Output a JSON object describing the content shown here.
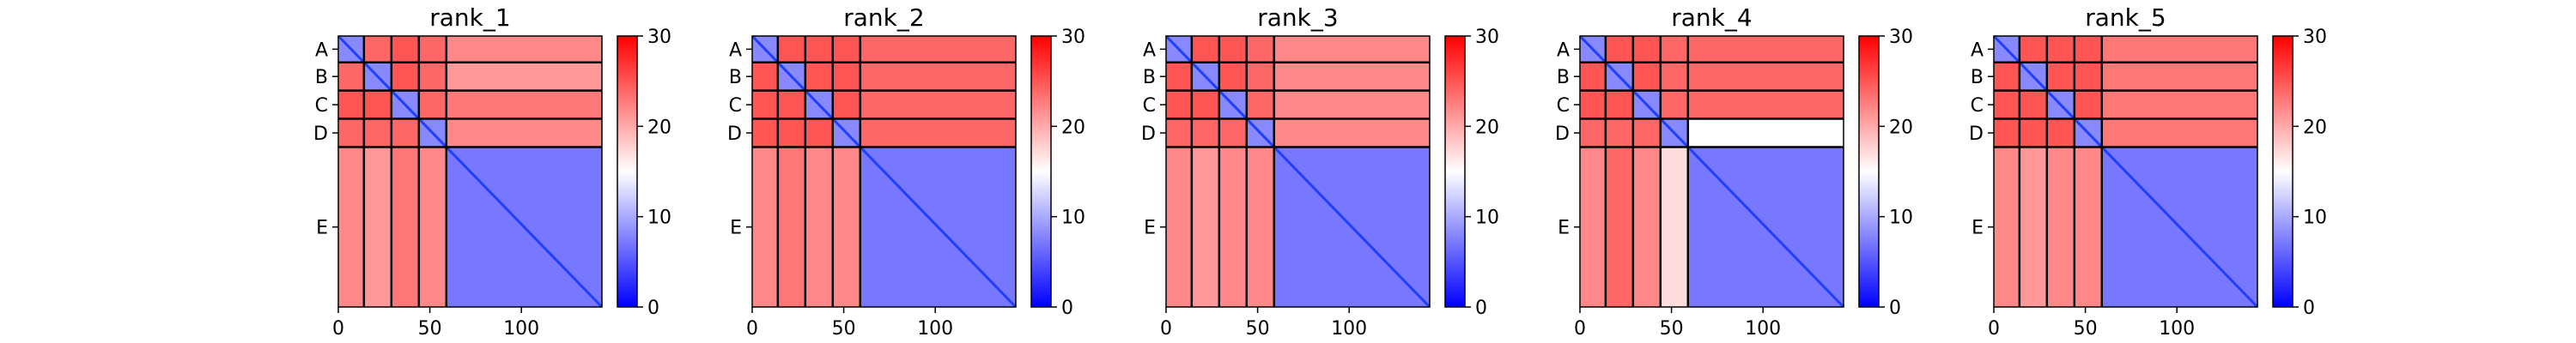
{
  "chart_data": {
    "type": "heatmap",
    "colormap": {
      "name": "bwr",
      "stops": [
        "#0000ff",
        "#ffffff",
        "#ff0000"
      ],
      "range": [
        0,
        30
      ]
    },
    "chain_labels": [
      "A",
      "B",
      "C",
      "D",
      "E"
    ],
    "chain_boundaries": [
      0,
      14,
      29,
      44,
      59,
      144
    ],
    "xticks": [
      0,
      50,
      100
    ],
    "xlim": [
      0,
      144
    ],
    "colorbar_ticks": [
      0,
      10,
      20,
      30
    ],
    "panels": [
      {
        "title": "rank_1",
        "block_means": [
          [
            8,
            24,
            25,
            24,
            22
          ],
          [
            24,
            8,
            25,
            24,
            21
          ],
          [
            25,
            25,
            8,
            24,
            23
          ],
          [
            24,
            24,
            24,
            8,
            22
          ],
          [
            22,
            21,
            23,
            22,
            7
          ]
        ]
      },
      {
        "title": "rank_2",
        "block_means": [
          [
            8,
            25,
            25,
            25,
            24
          ],
          [
            25,
            8,
            25,
            25,
            24
          ],
          [
            25,
            25,
            8,
            25,
            24
          ],
          [
            25,
            25,
            25,
            8,
            24
          ],
          [
            22,
            23,
            22,
            22,
            7
          ]
        ]
      },
      {
        "title": "rank_3",
        "block_means": [
          [
            8,
            25,
            25,
            24,
            22
          ],
          [
            25,
            8,
            25,
            24,
            22
          ],
          [
            25,
            25,
            8,
            24,
            22
          ],
          [
            24,
            24,
            24,
            8,
            22
          ],
          [
            22,
            21,
            22,
            22,
            7
          ]
        ]
      },
      {
        "title": "rank_4",
        "block_means": [
          [
            8,
            25,
            25,
            24,
            24
          ],
          [
            25,
            8,
            25,
            24,
            24
          ],
          [
            25,
            25,
            8,
            24,
            24
          ],
          [
            24,
            24,
            24,
            8,
            15
          ],
          [
            22,
            24,
            22,
            17,
            7
          ]
        ]
      },
      {
        "title": "rank_5",
        "block_means": [
          [
            8,
            25,
            25,
            25,
            23
          ],
          [
            25,
            8,
            25,
            25,
            23
          ],
          [
            25,
            25,
            8,
            25,
            23
          ],
          [
            25,
            25,
            25,
            8,
            23
          ],
          [
            22,
            21,
            22,
            22,
            7
          ]
        ]
      }
    ]
  }
}
